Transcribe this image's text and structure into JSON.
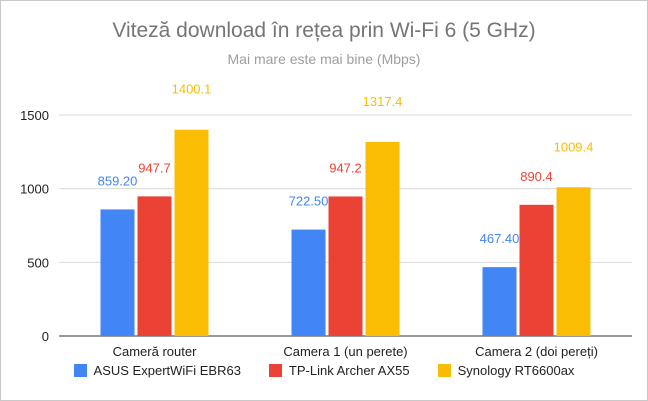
{
  "chart_data": {
    "type": "bar",
    "title": "Viteză download în rețea prin Wi-Fi 6 (5 GHz)",
    "subtitle": "Mai mare este mai bine (Mbps)",
    "xlabel": "",
    "ylabel": "",
    "ylim": [
      0,
      1500
    ],
    "yticks": [
      0,
      500,
      1000,
      1500
    ],
    "grid": true,
    "legend_position": "bottom",
    "categories": [
      "Cameră router",
      "Camera 1 (un perete)",
      "Camera 2 (doi pereți)"
    ],
    "series": [
      {
        "name": "ASUS ExpertWiFi EBR63",
        "color": "#4285f4",
        "values": [
          859.2,
          722.5,
          467.4
        ],
        "labels": [
          "859.20",
          "722.50",
          "467.40"
        ]
      },
      {
        "name": "TP-Link Archer AX55",
        "color": "#ea4335",
        "values": [
          947.7,
          947.2,
          890.4
        ],
        "labels": [
          "947.7",
          "947.2",
          "890.4"
        ]
      },
      {
        "name": "Synology RT6600ax",
        "color": "#fbbc04",
        "values": [
          1400.1,
          1317.4,
          1009.4
        ],
        "labels": [
          "1400.1",
          "1317.4",
          "1009.4"
        ]
      }
    ]
  }
}
